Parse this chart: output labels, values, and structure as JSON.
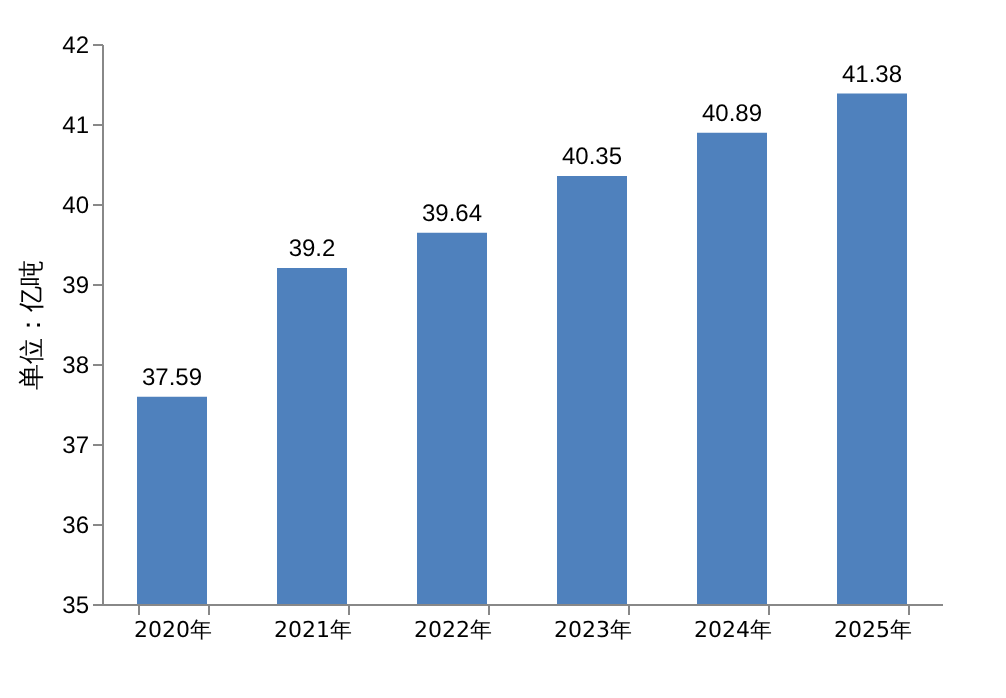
{
  "chart_data": {
    "type": "bar",
    "ylabel": "单位：亿吨",
    "categories": [
      "2020年",
      "2021年",
      "2022年",
      "2023年",
      "2024年",
      "2025年"
    ],
    "values": [
      37.59,
      39.2,
      39.64,
      40.35,
      40.89,
      41.38
    ],
    "color": "#4f81bd",
    "ylim": [
      35,
      42
    ],
    "yticks": [
      35,
      36,
      37,
      38,
      39,
      40,
      41,
      42
    ],
    "grid": false,
    "data_labels": true
  }
}
